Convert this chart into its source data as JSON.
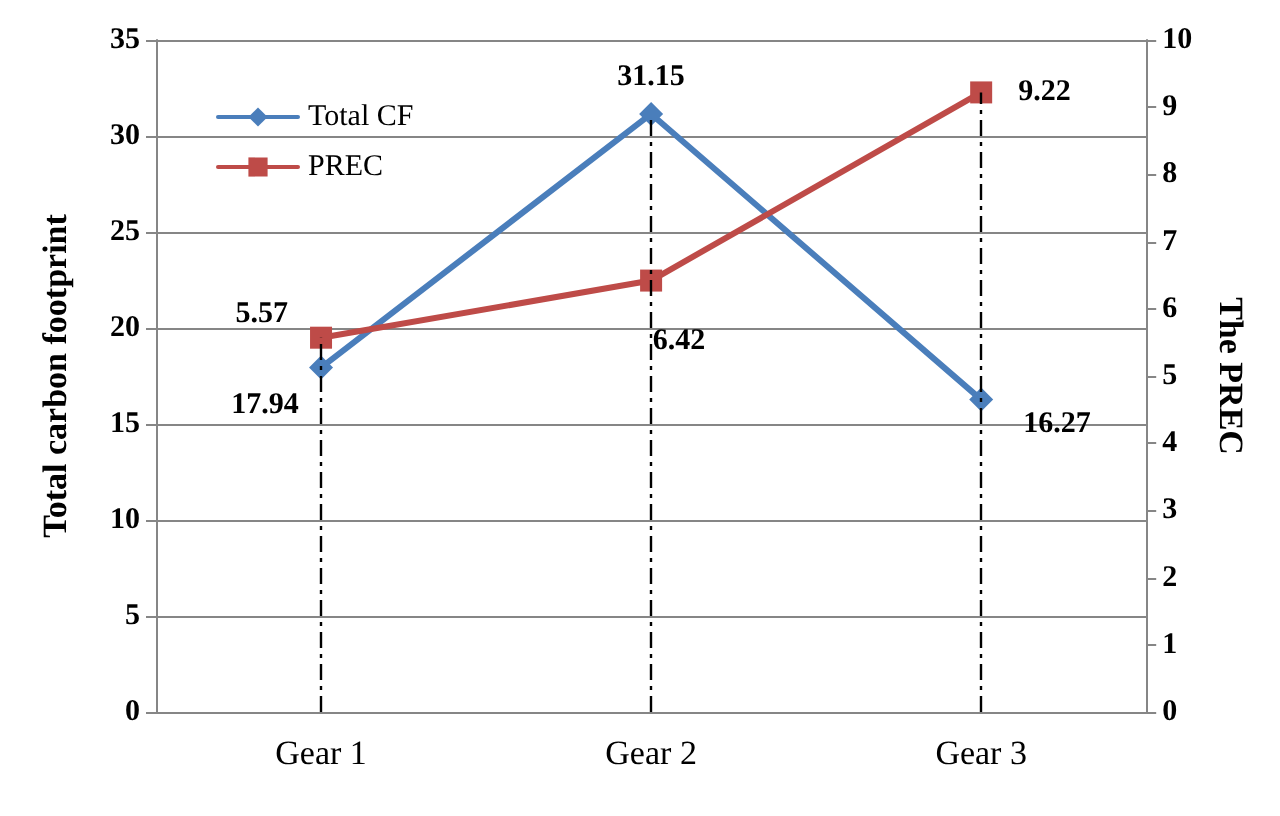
{
  "chart_data": {
    "type": "line",
    "categories": [
      "Gear 1",
      "Gear 2",
      "Gear 3"
    ],
    "series": [
      {
        "name": "Total CF",
        "color": "#4a7ebb",
        "values": [
          17.94,
          31.15,
          16.27
        ],
        "marker": "diamond"
      },
      {
        "name": "PREC",
        "color": "#be4b48",
        "values": [
          5.57,
          6.42,
          9.22
        ],
        "marker": "square",
        "axis": "y2"
      }
    ],
    "ylabel": "Total carbon footprint",
    "y2label": "The PREC",
    "ylim": [
      0,
      35
    ],
    "yticks": [
      0,
      5,
      10,
      15,
      20,
      25,
      30,
      35
    ],
    "y2lim": [
      0,
      10
    ],
    "y2ticks": [
      0,
      1,
      2,
      3,
      4,
      5,
      6,
      7,
      8,
      9,
      10
    ],
    "grid": "y",
    "legend": "top left",
    "data_labels": true,
    "ref_lines": [
      {
        "axis": "x",
        "value": "Gear 1",
        "line_style": "dashed",
        "color": "#000000"
      },
      {
        "axis": "x",
        "value": "Gear 2",
        "line_style": "dashed",
        "color": "#000000"
      },
      {
        "axis": "x",
        "value": "Gear 3",
        "line_style": "dashed",
        "color": "#000000"
      }
    ]
  }
}
